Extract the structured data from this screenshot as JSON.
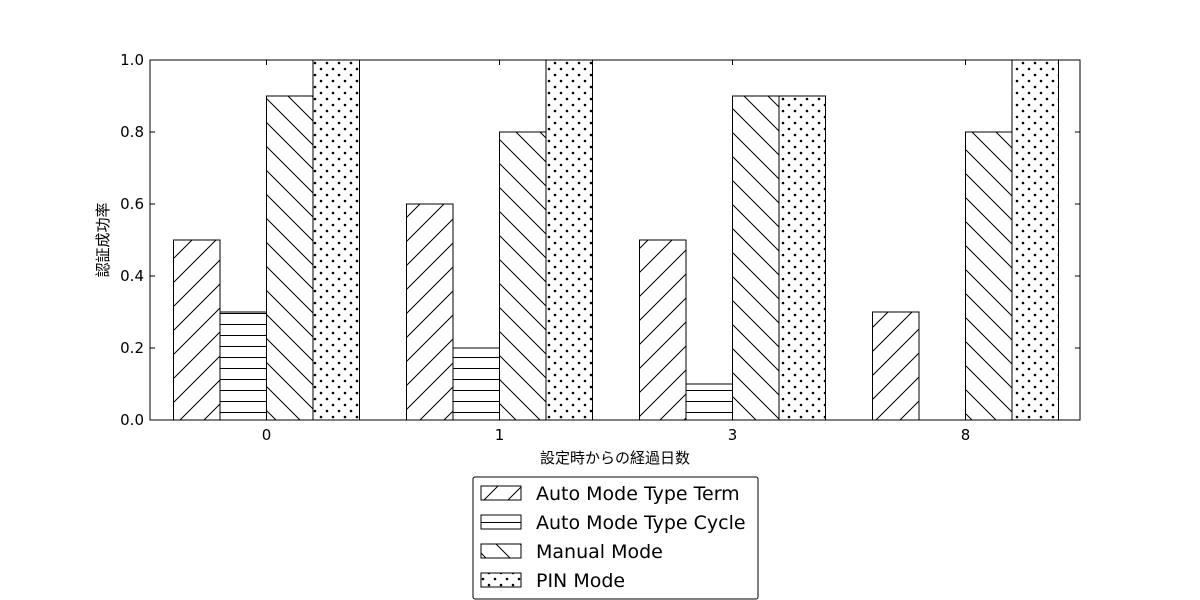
{
  "chart_data": {
    "type": "bar",
    "categories": [
      "0",
      "1",
      "3",
      "8"
    ],
    "series": [
      {
        "name": "Auto Mode Type Term",
        "values": [
          0.5,
          0.6,
          0.5,
          0.3
        ],
        "pattern": "diagonal-up"
      },
      {
        "name": "Auto Mode Type Cycle",
        "values": [
          0.3,
          0.2,
          0.1,
          0.0
        ],
        "pattern": "horizontal"
      },
      {
        "name": "Manual Mode",
        "values": [
          0.9,
          0.8,
          0.9,
          0.8
        ],
        "pattern": "diagonal-down"
      },
      {
        "name": "PIN Mode",
        "values": [
          1.0,
          1.0,
          0.9,
          1.0
        ],
        "pattern": "dots"
      }
    ],
    "xlabel": "設定時からの経過日数",
    "ylabel": "認証成功率",
    "ylim": [
      0,
      1.0
    ],
    "yticks": [
      "0.0",
      "0.2",
      "0.4",
      "0.6",
      "0.8",
      "1.0"
    ],
    "grid": false,
    "legend_position": "bottom-center",
    "bar_fill": "#ffffff",
    "stroke_color": "#000000"
  }
}
